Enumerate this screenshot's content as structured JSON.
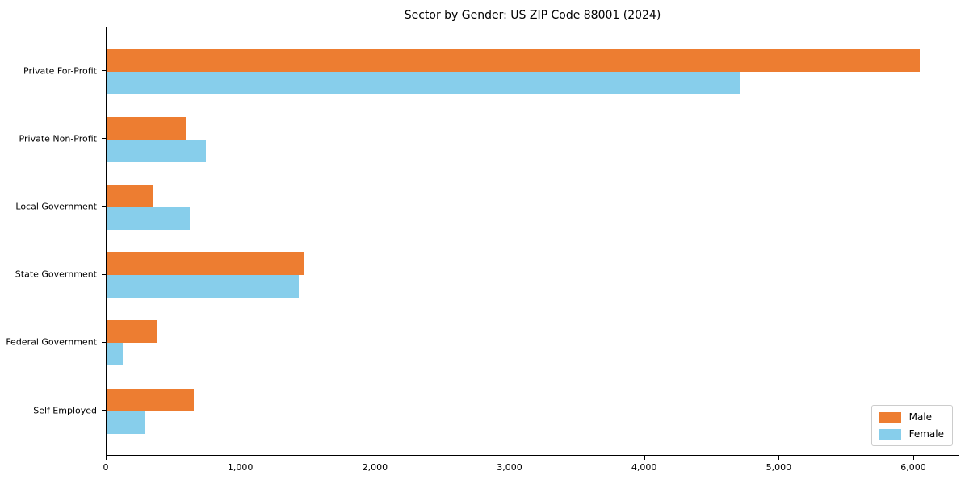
{
  "chart_data": {
    "type": "bar",
    "orientation": "horizontal",
    "title": "Sector by Gender: US ZIP Code 88001 (2024)",
    "categories": [
      "Private For-Profit",
      "Private Non-Profit",
      "Local Government",
      "State Government",
      "Federal Government",
      "Self-Employed"
    ],
    "series": [
      {
        "name": "Male",
        "color": "#ED7D31",
        "values": [
          6040,
          585,
          340,
          1470,
          370,
          645
        ]
      },
      {
        "name": "Female",
        "color": "#87CEEB",
        "values": [
          4705,
          740,
          615,
          1430,
          120,
          285
        ]
      }
    ],
    "xlabel": "",
    "ylabel": "",
    "xlim": [
      0,
      6342
    ],
    "x_ticks": [
      0,
      1000,
      2000,
      3000,
      4000,
      5000,
      6000
    ],
    "x_tick_labels": [
      "0",
      "1,000",
      "2,000",
      "3,000",
      "4,000",
      "5,000",
      "6,000"
    ],
    "grid": false,
    "legend_position": "lower right"
  }
}
